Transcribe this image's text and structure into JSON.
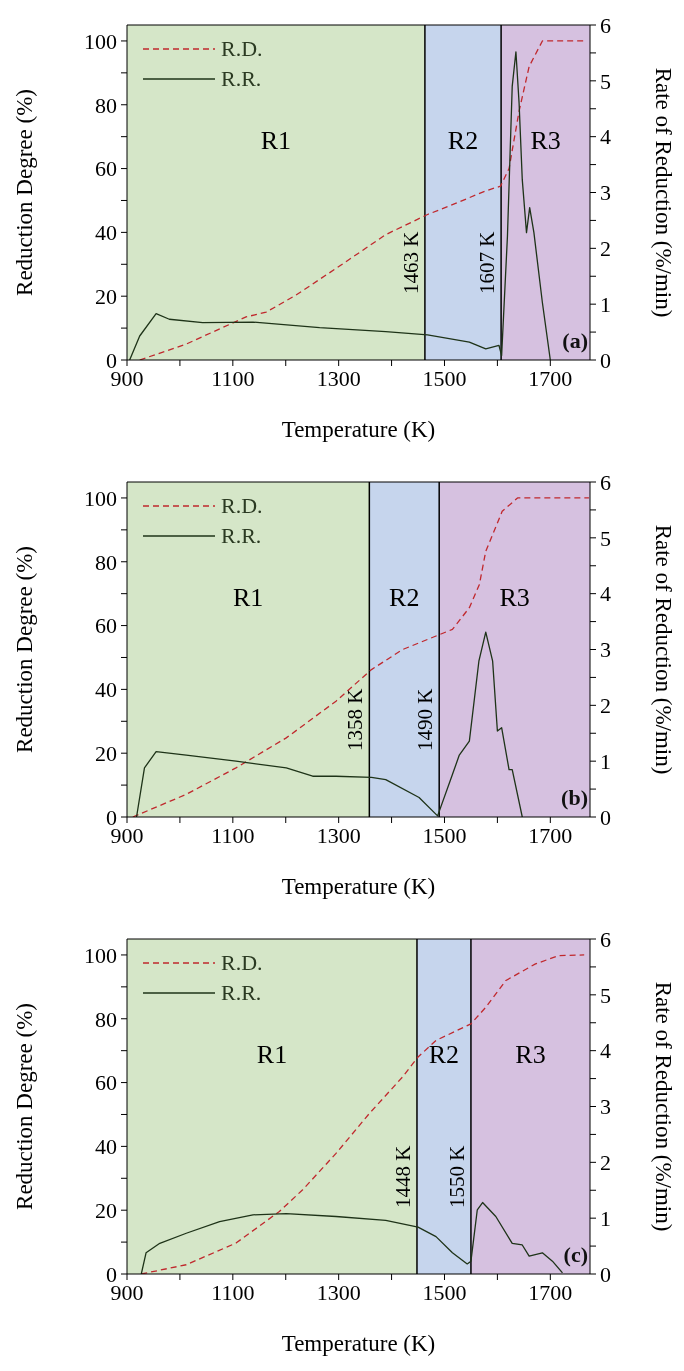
{
  "chart_data": [
    {
      "type": "line",
      "xlabel": "Temperature (K)",
      "ylabel": "Reduction Degree (%)",
      "y2label": "Rate of Reduction (%/min)",
      "xlim": [
        900,
        1775
      ],
      "xticks": [
        900,
        {
          "value": 1000,
          "label": null
        },
        1100,
        {
          "value": 1200,
          "label": null
        },
        1300,
        {
          "value": 1400,
          "label": null
        },
        1500,
        {
          "value": 1600,
          "label": null
        },
        1700
      ],
      "ylim": [
        0,
        105
      ],
      "yticks": [
        0,
        {
          "value": 10,
          "label": null
        },
        20,
        {
          "value": 30,
          "label": null
        },
        40,
        {
          "value": 50,
          "label": null
        },
        60,
        {
          "value": 70,
          "label": null
        },
        80,
        {
          "value": 90,
          "label": null
        },
        100
      ],
      "y2lim": [
        0,
        6
      ],
      "y2ticks": [
        0,
        {
          "value": 0.5,
          "label": null
        },
        1,
        {
          "value": 1.5,
          "label": null
        },
        2,
        {
          "value": 2.5,
          "label": null
        },
        3,
        {
          "value": 3.5,
          "label": null
        },
        4,
        {
          "value": 4.5,
          "label": null
        },
        5,
        {
          "value": 5.5,
          "label": null
        },
        6
      ],
      "legend": "top left",
      "grid": false,
      "marker": "none",
      "series": [
        {
          "name": "R.D.",
          "color": "#c0282d",
          "line_style": "dashed",
          "x": [
            924,
            1012,
            1125,
            1163,
            1219,
            1295,
            1389,
            1468,
            1515,
            1578,
            1606,
            1622,
            1641,
            1660,
            1685,
            1767
          ],
          "values": [
            0,
            5,
            13.5,
            15,
            20.3,
            28.7,
            39.3,
            45.6,
            48.7,
            53,
            54.5,
            60,
            78,
            92,
            100,
            100
          ]
        },
        {
          "name": "R.R.",
          "color": "#1e3318",
          "line_style": "solid",
          "axis": "y2",
          "x": [
            905,
            924,
            955,
            980,
            1043,
            1138,
            1264,
            1389,
            1468,
            1547,
            1578,
            1603,
            1608,
            1619,
            1628,
            1635,
            1641,
            1647,
            1655,
            1661,
            1669,
            1685,
            1700
          ],
          "values": [
            0,
            0.43,
            0.83,
            0.73,
            0.67,
            0.68,
            0.58,
            0.51,
            0.45,
            0.32,
            0.2,
            0.26,
            0.08,
            2.22,
            4.9,
            5.52,
            4.6,
            3.23,
            2.28,
            2.73,
            2.28,
            1.03,
            0
          ]
        }
      ],
      "bands": [
        {
          "axis": "x",
          "from": 900,
          "to": 1463,
          "label": "R1",
          "color": "#d5e6c8"
        },
        {
          "axis": "x",
          "from": 1463,
          "to": 1607,
          "label": "R2",
          "color": "#c6d5ed"
        },
        {
          "axis": "x",
          "from": 1607,
          "to": 1775,
          "label": "R3",
          "color": "#d6c1e0"
        }
      ],
      "ref_lines": [
        {
          "axis": "x",
          "value": 1463,
          "label": "1463 K",
          "color": "#000000"
        },
        {
          "axis": "x",
          "value": 1607,
          "label": "1607 K",
          "color": "#000000"
        }
      ],
      "annotations": [
        "(a)"
      ]
    },
    {
      "type": "line",
      "xlabel": "Temperature (K)",
      "ylabel": "Reduction Degree (%)",
      "y2label": "Rate of Reduction (%/min)",
      "xlim": [
        900,
        1775
      ],
      "xticks": [
        900,
        {
          "value": 1000,
          "label": null
        },
        1100,
        {
          "value": 1200,
          "label": null
        },
        1300,
        {
          "value": 1400,
          "label": null
        },
        1500,
        {
          "value": 1600,
          "label": null
        },
        1700
      ],
      "ylim": [
        0,
        105
      ],
      "yticks": [
        0,
        {
          "value": 10,
          "label": null
        },
        20,
        {
          "value": 30,
          "label": null
        },
        40,
        {
          "value": 50,
          "label": null
        },
        60,
        {
          "value": 70,
          "label": null
        },
        80,
        {
          "value": 90,
          "label": null
        },
        100
      ],
      "y2lim": [
        0,
        6
      ],
      "y2ticks": [
        0,
        {
          "value": 0.5,
          "label": null
        },
        1,
        {
          "value": 1.5,
          "label": null
        },
        2,
        {
          "value": 2.5,
          "label": null
        },
        3,
        {
          "value": 3.5,
          "label": null
        },
        4,
        {
          "value": 4.5,
          "label": null
        },
        5,
        {
          "value": 5.5,
          "label": null
        },
        6
      ],
      "legend": "top left",
      "grid": false,
      "marker": "none",
      "series": [
        {
          "name": "R.D.",
          "color": "#c0282d",
          "line_style": "dashed",
          "x": [
            911,
            1012,
            1106,
            1201,
            1295,
            1362,
            1421,
            1488,
            1515,
            1547,
            1566,
            1578,
            1609,
            1638,
            1773
          ],
          "values": [
            0,
            7.1,
            15.4,
            24.8,
            36.3,
            46.2,
            52.5,
            57,
            58.8,
            65.6,
            72.9,
            83.3,
            95.8,
            100,
            100
          ]
        },
        {
          "name": "R.R.",
          "color": "#1e3318",
          "line_style": "solid",
          "axis": "y2",
          "x": [
            918,
            933,
            955,
            1012,
            1106,
            1201,
            1251,
            1295,
            1362,
            1389,
            1452,
            1487,
            1515,
            1528,
            1547,
            1565,
            1578,
            1591,
            1600,
            1608,
            1622,
            1628,
            1647
          ],
          "values": [
            0,
            0.88,
            1.17,
            1.11,
            1.0,
            0.88,
            0.73,
            0.73,
            0.71,
            0.67,
            0.35,
            0.02,
            0.76,
            1.11,
            1.36,
            2.79,
            3.31,
            2.79,
            1.54,
            1.6,
            0.85,
            0.85,
            0
          ]
        }
      ],
      "bands": [
        {
          "axis": "x",
          "from": 900,
          "to": 1358,
          "label": "R1",
          "color": "#d5e6c8"
        },
        {
          "axis": "x",
          "from": 1358,
          "to": 1490,
          "label": "R2",
          "color": "#c6d5ed"
        },
        {
          "axis": "x",
          "from": 1490,
          "to": 1775,
          "label": "R3",
          "color": "#d6c1e0"
        }
      ],
      "ref_lines": [
        {
          "axis": "x",
          "value": 1358,
          "label": "1358 K",
          "color": "#000000"
        },
        {
          "axis": "x",
          "value": 1490,
          "label": "1490 K",
          "color": "#000000"
        }
      ],
      "annotations": [
        "(b)"
      ]
    },
    {
      "type": "line",
      "xlabel": "Temperature (K)",
      "ylabel": "Reduction Degree (%)",
      "y2label": "Rate of Reduction (%/min)",
      "xlim": [
        900,
        1775
      ],
      "xticks": [
        900,
        {
          "value": 1000,
          "label": null
        },
        1100,
        {
          "value": 1200,
          "label": null
        },
        1300,
        {
          "value": 1400,
          "label": null
        },
        1500,
        {
          "value": 1600,
          "label": null
        },
        1700
      ],
      "ylim": [
        0,
        105
      ],
      "yticks": [
        0,
        {
          "value": 10,
          "label": null
        },
        20,
        {
          "value": 30,
          "label": null
        },
        40,
        {
          "value": 50,
          "label": null
        },
        60,
        {
          "value": 70,
          "label": null
        },
        80,
        {
          "value": 90,
          "label": null
        },
        100
      ],
      "y2lim": [
        0,
        6
      ],
      "y2ticks": [
        0,
        {
          "value": 0.5,
          "label": null
        },
        1,
        {
          "value": 1.5,
          "label": null
        },
        2,
        {
          "value": 2.5,
          "label": null
        },
        3,
        {
          "value": 3.5,
          "label": null
        },
        4,
        {
          "value": 4.5,
          "label": null
        },
        5,
        {
          "value": 5.5,
          "label": null
        },
        6
      ],
      "legend": "top left",
      "grid": false,
      "marker": "none",
      "series": [
        {
          "name": "R.D.",
          "color": "#c0282d",
          "line_style": "dashed",
          "x": [
            927,
            1012,
            1106,
            1188,
            1232,
            1295,
            1358,
            1421,
            1450,
            1484,
            1550,
            1578,
            1616,
            1672,
            1716,
            1764
          ],
          "values": [
            0,
            2.9,
            9.7,
            19.6,
            26.4,
            37.8,
            50.3,
            61.8,
            68,
            73.2,
            78.4,
            83.6,
            92,
            97.2,
            99.8,
            100
          ]
        },
        {
          "name": "R.R.",
          "color": "#1e3318",
          "line_style": "solid",
          "axis": "y2",
          "x": [
            927,
            936,
            962,
            1012,
            1075,
            1138,
            1201,
            1295,
            1389,
            1450,
            1484,
            1515,
            1543,
            1550,
            1562,
            1572,
            1597,
            1628,
            1647,
            1660,
            1685,
            1704,
            1723
          ],
          "values": [
            0,
            0.38,
            0.55,
            0.73,
            0.94,
            1.06,
            1.08,
            1.03,
            0.96,
            0.84,
            0.67,
            0.38,
            0.18,
            0.23,
            1.15,
            1.28,
            1.03,
            0.55,
            0.52,
            0.32,
            0.38,
            0.23,
            0.02
          ]
        }
      ],
      "bands": [
        {
          "axis": "x",
          "from": 900,
          "to": 1448,
          "label": "R1",
          "color": "#d5e6c8"
        },
        {
          "axis": "x",
          "from": 1448,
          "to": 1550,
          "label": "R2",
          "color": "#c6d5ed"
        },
        {
          "axis": "x",
          "from": 1550,
          "to": 1775,
          "label": "R3",
          "color": "#d6c1e0"
        }
      ],
      "ref_lines": [
        {
          "axis": "x",
          "value": 1448,
          "label": "1448 K",
          "color": "#000000"
        },
        {
          "axis": "x",
          "value": 1550,
          "label": "1550 K",
          "color": "#000000"
        }
      ],
      "annotations": [
        "(c)"
      ]
    }
  ]
}
